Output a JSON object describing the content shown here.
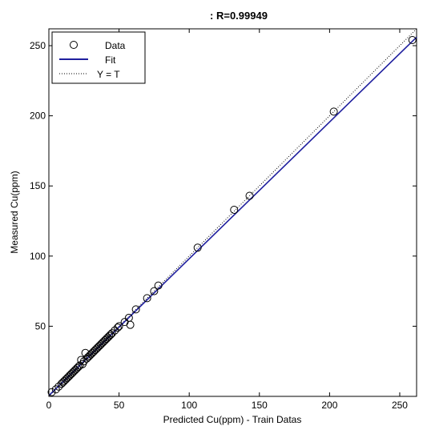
{
  "chart_data": {
    "type": "scatter",
    "title": ": R=0.99949",
    "xlabel": "Predicted Cu(ppm) - Train Datas",
    "ylabel": "Measured Cu(ppm)",
    "xlim": [
      0,
      262
    ],
    "ylim": [
      0,
      262
    ],
    "xticks": [
      0,
      50,
      100,
      150,
      200,
      250
    ],
    "yticks": [
      50,
      100,
      150,
      200,
      250
    ],
    "grid": false,
    "legend_position": "top-left",
    "series": [
      {
        "name": "Data",
        "kind": "markers",
        "marker": "circle",
        "color": "#000000",
        "points": [
          [
            2,
            3
          ],
          [
            5,
            5
          ],
          [
            7,
            7
          ],
          [
            9,
            9
          ],
          [
            10,
            10
          ],
          [
            11,
            11
          ],
          [
            12,
            12
          ],
          [
            13,
            13
          ],
          [
            14,
            14
          ],
          [
            15,
            15
          ],
          [
            16,
            16
          ],
          [
            17,
            17
          ],
          [
            18,
            18
          ],
          [
            19,
            19
          ],
          [
            20,
            20
          ],
          [
            21,
            21
          ],
          [
            22,
            22
          ],
          [
            23,
            26
          ],
          [
            24,
            23
          ],
          [
            25,
            25
          ],
          [
            26,
            31
          ],
          [
            27,
            27
          ],
          [
            28,
            28
          ],
          [
            29,
            29
          ],
          [
            30,
            30
          ],
          [
            31,
            31
          ],
          [
            32,
            32
          ],
          [
            33,
            33
          ],
          [
            34,
            34
          ],
          [
            35,
            35
          ],
          [
            36,
            36
          ],
          [
            37,
            37
          ],
          [
            38,
            38
          ],
          [
            39,
            39
          ],
          [
            40,
            40
          ],
          [
            41,
            41
          ],
          [
            42,
            42
          ],
          [
            43,
            43
          ],
          [
            44,
            44
          ],
          [
            45,
            45
          ],
          [
            47,
            47
          ],
          [
            49,
            49
          ],
          [
            50,
            50
          ],
          [
            54,
            53
          ],
          [
            57,
            56
          ],
          [
            58,
            51
          ],
          [
            62,
            62
          ],
          [
            70,
            70
          ],
          [
            75,
            75
          ],
          [
            78,
            79
          ],
          [
            106,
            106
          ],
          [
            132,
            133
          ],
          [
            143,
            143
          ],
          [
            203,
            203
          ],
          [
            259,
            254
          ]
        ]
      },
      {
        "name": "Fit",
        "kind": "line",
        "color": "#1f1f9e",
        "line_style": "solid",
        "slope": 0.975,
        "intercept": 0.6
      },
      {
        "name": "Y = T",
        "kind": "line",
        "color": "#000000",
        "line_style": "dotted",
        "slope": 1,
        "intercept": 0
      }
    ]
  }
}
